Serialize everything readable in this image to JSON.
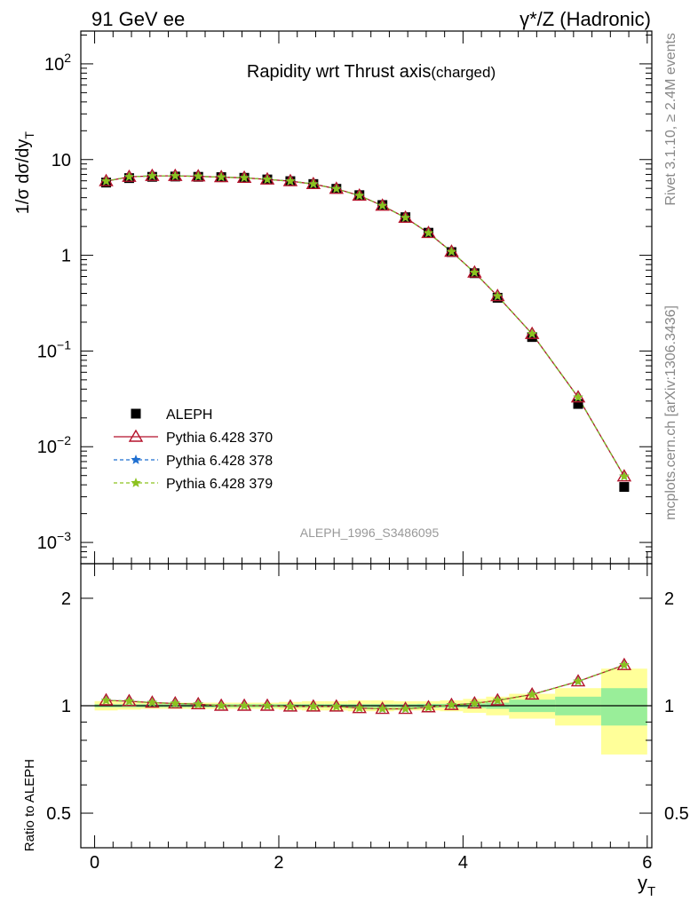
{
  "header": {
    "left": "91 GeV ee",
    "right": "γ*/Z (Hadronic)"
  },
  "side_labels": {
    "rivet": "Rivet 3.1.10, ≥ 2.4M events",
    "mcplots": "mcplots.cern.ch [arXiv:1306.3436]"
  },
  "chart_data": [
    {
      "type": "line",
      "title_main": "Rapidity wrt Thrust axis",
      "title_sub": "(charged)",
      "watermark": "ALEPH_1996_S3486095",
      "ylabel": "1/σ dσ/dy",
      "ylabel_sub": "T",
      "yscale": "log",
      "ylim": [
        0.0006,
        220
      ],
      "xlim": [
        -0.15,
        6.05
      ],
      "ytick_labels": [
        {
          "base": "10",
          "exp": "−3",
          "value": 0.001
        },
        {
          "base": "10",
          "exp": "−2",
          "value": 0.01
        },
        {
          "base": "10",
          "exp": "−1",
          "value": 0.1
        },
        {
          "base": "1",
          "exp": "",
          "value": 1
        },
        {
          "base": "10",
          "exp": "",
          "value": 10
        },
        {
          "base": "10",
          "exp": "2",
          "value": 100
        }
      ],
      "legend_position": "lower-left",
      "x": [
        0.125,
        0.375,
        0.625,
        0.875,
        1.125,
        1.375,
        1.625,
        1.875,
        2.125,
        2.375,
        2.625,
        2.875,
        3.125,
        3.375,
        3.625,
        3.875,
        4.125,
        4.375,
        4.75,
        5.25,
        5.75
      ],
      "series": [
        {
          "name": "ALEPH",
          "color": "#000000",
          "marker": "square",
          "values": [
            5.75,
            6.4,
            6.6,
            6.65,
            6.6,
            6.55,
            6.45,
            6.2,
            5.95,
            5.55,
            4.95,
            4.25,
            3.35,
            2.5,
            1.72,
            1.08,
            0.65,
            0.36,
            0.14,
            0.028,
            0.0038
          ]
        },
        {
          "name": "Pythia 6.428 370",
          "color": "#b5122b",
          "marker": "triangle",
          "dash": "",
          "values": [
            5.95,
            6.6,
            6.75,
            6.75,
            6.68,
            6.55,
            6.45,
            6.2,
            5.95,
            5.55,
            4.95,
            4.2,
            3.3,
            2.47,
            1.71,
            1.09,
            0.66,
            0.375,
            0.151,
            0.0328,
            0.0049
          ]
        },
        {
          "name": "Pythia 6.428 378",
          "color": "#1f6fd1",
          "marker": "star",
          "dash": "4,3",
          "values": [
            5.95,
            6.6,
            6.75,
            6.75,
            6.68,
            6.55,
            6.45,
            6.2,
            5.95,
            5.55,
            4.95,
            4.2,
            3.3,
            2.47,
            1.71,
            1.09,
            0.66,
            0.375,
            0.151,
            0.0328,
            0.0049
          ]
        },
        {
          "name": "Pythia 6.428 379",
          "color": "#8cc21f",
          "marker": "star",
          "dash": "4,3",
          "values": [
            5.95,
            6.6,
            6.75,
            6.75,
            6.68,
            6.55,
            6.45,
            6.2,
            5.95,
            5.55,
            4.95,
            4.2,
            3.3,
            2.47,
            1.71,
            1.09,
            0.66,
            0.375,
            0.151,
            0.0328,
            0.0049
          ]
        }
      ]
    },
    {
      "type": "line",
      "ylabel": "Ratio to ALEPH",
      "xlabel": "y",
      "xlabel_sub": "T",
      "yscale": "log",
      "ylim": [
        0.4,
        2.5
      ],
      "xlim": [
        -0.15,
        6.05
      ],
      "ytick_labels": [
        "0.5",
        "1",
        "2"
      ],
      "xtick_labels": [
        "0",
        "2",
        "4",
        "6"
      ],
      "bin_edges": [
        0,
        0.25,
        0.5,
        0.75,
        1.0,
        1.25,
        1.5,
        1.75,
        2.0,
        2.25,
        2.5,
        2.75,
        3.0,
        3.25,
        3.5,
        3.75,
        4.0,
        4.25,
        4.5,
        5.0,
        5.5,
        6.0
      ],
      "band_stat": [
        0.01,
        0.01,
        0.01,
        0.01,
        0.01,
        0.01,
        0.01,
        0.01,
        0.01,
        0.01,
        0.01,
        0.01,
        0.01,
        0.01,
        0.012,
        0.012,
        0.015,
        0.02,
        0.04,
        0.06,
        0.12
      ],
      "band_total": [
        0.03,
        0.025,
        0.02,
        0.02,
        0.02,
        0.02,
        0.02,
        0.02,
        0.025,
        0.03,
        0.03,
        0.035,
        0.035,
        0.03,
        0.03,
        0.035,
        0.045,
        0.06,
        0.08,
        0.12,
        0.27
      ],
      "series": [
        {
          "name": "Pythia 6.428 370",
          "color": "#b5122b",
          "marker": "triangle",
          "values": [
            1.035,
            1.03,
            1.02,
            1.015,
            1.01,
            1.0,
            1.0,
            1.0,
            0.995,
            0.995,
            0.995,
            0.985,
            0.98,
            0.98,
            0.99,
            1.005,
            1.015,
            1.035,
            1.075,
            1.17,
            1.3
          ]
        },
        {
          "name": "Pythia 6.428 378",
          "color": "#1f6fd1",
          "marker": "star",
          "values": [
            1.035,
            1.03,
            1.02,
            1.015,
            1.01,
            1.0,
            1.0,
            1.0,
            0.995,
            0.995,
            0.995,
            0.985,
            0.98,
            0.98,
            0.99,
            1.005,
            1.015,
            1.035,
            1.075,
            1.17,
            1.3
          ]
        },
        {
          "name": "Pythia 6.428 379",
          "color": "#8cc21f",
          "marker": "star",
          "values": [
            1.035,
            1.03,
            1.02,
            1.015,
            1.01,
            1.0,
            1.0,
            1.0,
            0.995,
            0.995,
            0.995,
            0.985,
            0.98,
            0.98,
            0.99,
            1.005,
            1.015,
            1.035,
            1.075,
            1.17,
            1.3
          ]
        }
      ]
    }
  ]
}
